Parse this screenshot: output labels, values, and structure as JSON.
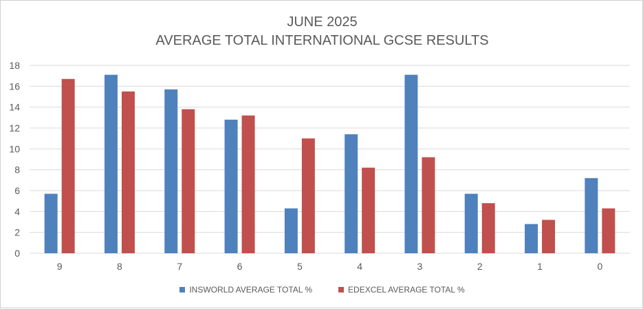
{
  "chart_data": {
    "type": "bar",
    "title": "JUNE 2025",
    "subtitle": "AVERAGE TOTAL INTERNATIONAL GCSE RESULTS",
    "categories": [
      "9",
      "8",
      "7",
      "6",
      "5",
      "4",
      "3",
      "2",
      "1",
      "0"
    ],
    "series": [
      {
        "name": "INSWORLD AVERAGE TOTAL %",
        "color": "#4f81bd",
        "values": [
          5.7,
          17.1,
          15.7,
          12.8,
          4.3,
          11.4,
          17.1,
          5.7,
          2.8,
          7.2
        ]
      },
      {
        "name": "EDEXCEL AVERAGE TOTAL %",
        "color": "#c0504d",
        "values": [
          16.7,
          15.5,
          13.8,
          13.2,
          11.0,
          8.2,
          9.2,
          4.8,
          3.2,
          4.3
        ]
      }
    ],
    "xlabel": "",
    "ylabel": "",
    "ylim": [
      0,
      18
    ],
    "yticks": [
      0,
      2,
      4,
      6,
      8,
      10,
      12,
      14,
      16,
      18
    ],
    "grid": true,
    "legend": "bottom"
  }
}
